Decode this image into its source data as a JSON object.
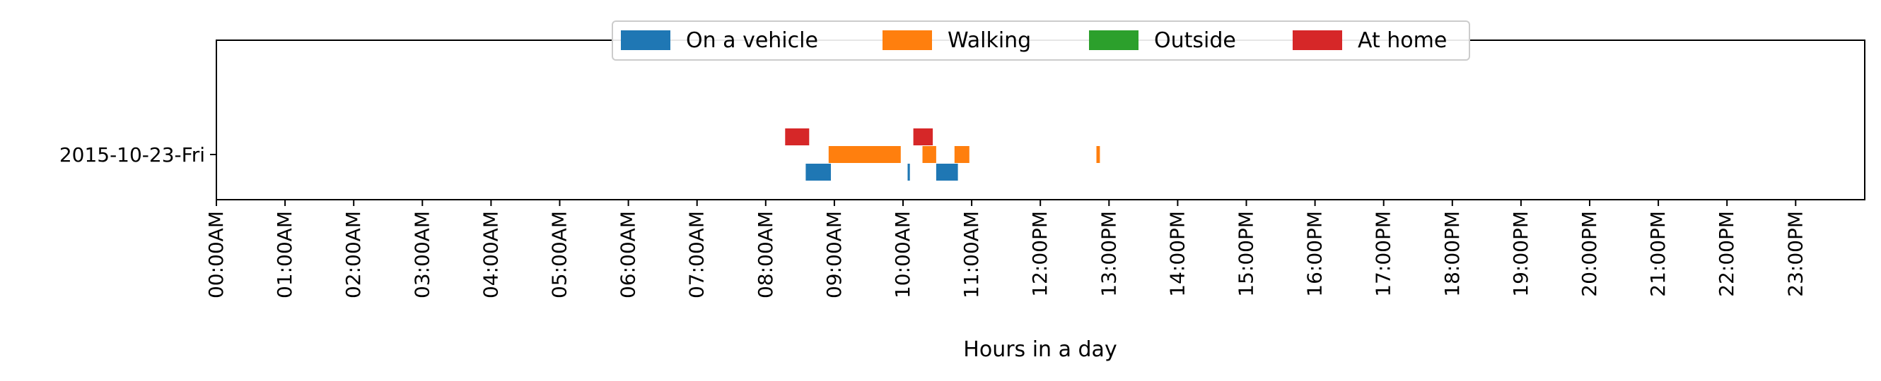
{
  "chart_data": {
    "type": "bar",
    "title": "",
    "xlabel": "Hours in a day",
    "ylabel": "",
    "xlim": [
      0,
      24
    ],
    "grid": false,
    "legend_placement": "top-center",
    "rows": [
      "2015-10-23-Fri"
    ],
    "x_ticks": [
      "00:00AM",
      "01:00AM",
      "02:00AM",
      "03:00AM",
      "04:00AM",
      "05:00AM",
      "06:00AM",
      "07:00AM",
      "08:00AM",
      "09:00AM",
      "10:00AM",
      "11:00AM",
      "12:00PM",
      "13:00PM",
      "14:00PM",
      "15:00PM",
      "16:00PM",
      "17:00PM",
      "18:00PM",
      "19:00PM",
      "20:00PM",
      "21:00PM",
      "22:00PM",
      "23:00PM"
    ],
    "series": [
      {
        "name": "On a vehicle",
        "color": "#1f77b4",
        "segments": [
          {
            "row": "2015-10-23-Fri",
            "start": "08:35",
            "end": "08:57"
          },
          {
            "row": "2015-10-23-Fri",
            "start": "10:04",
            "end": "10:06"
          },
          {
            "row": "2015-10-23-Fri",
            "start": "10:29",
            "end": "10:48"
          }
        ]
      },
      {
        "name": "Walking",
        "color": "#ff7f0e",
        "segments": [
          {
            "row": "2015-10-23-Fri",
            "start": "08:55",
            "end": "09:58"
          },
          {
            "row": "2015-10-23-Fri",
            "start": "10:17",
            "end": "10:29"
          },
          {
            "row": "2015-10-23-Fri",
            "start": "10:45",
            "end": "10:58"
          },
          {
            "row": "2015-10-23-Fri",
            "start": "12:49",
            "end": "12:52"
          }
        ]
      },
      {
        "name": "Outside",
        "color": "#2ca02c",
        "segments": []
      },
      {
        "name": "At home",
        "color": "#d62728",
        "segments": [
          {
            "row": "2015-10-23-Fri",
            "start": "08:17",
            "end": "08:38"
          },
          {
            "row": "2015-10-23-Fri",
            "start": "10:09",
            "end": "10:26"
          }
        ]
      }
    ]
  }
}
